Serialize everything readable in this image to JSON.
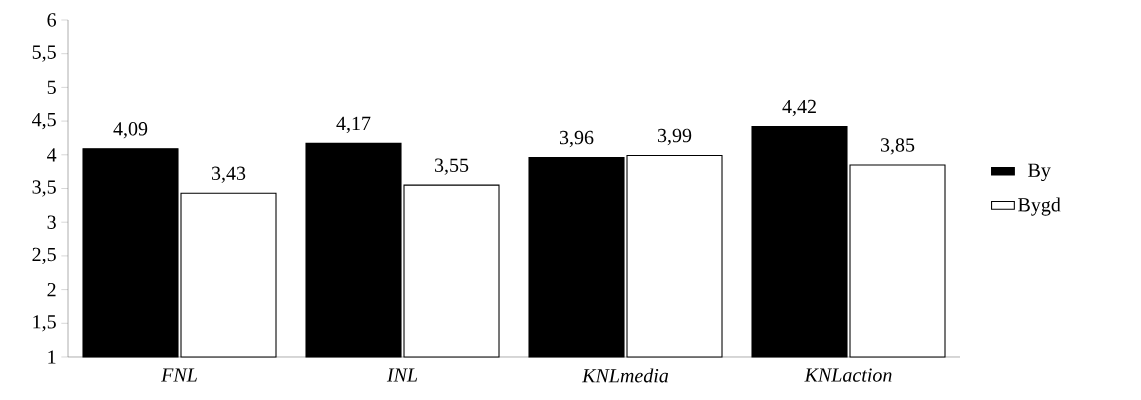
{
  "chart_data": {
    "type": "bar",
    "categories": [
      "FNL",
      "INL",
      "KNLmedia",
      "KNLaction"
    ],
    "series": [
      {
        "name": "By",
        "color": "#000000",
        "values": [
          4.09,
          4.17,
          3.96,
          4.42
        ],
        "value_labels": [
          "4,09",
          "4,17",
          "3,96",
          "4,42"
        ]
      },
      {
        "name": "Bygd",
        "color": "#ffffff",
        "values": [
          3.43,
          3.55,
          3.99,
          3.85
        ],
        "value_labels": [
          "3,43",
          "3,55",
          "3,99",
          "3,85"
        ]
      }
    ],
    "ylim": [
      1,
      6
    ],
    "yticks": [
      1,
      {
        "value": 1.5,
        "label": "1,5"
      },
      2,
      {
        "value": 2.5,
        "label": "2,5"
      },
      3,
      {
        "value": 3.5,
        "label": "3,5"
      },
      4,
      {
        "value": 4.5,
        "label": "4,5"
      },
      5,
      {
        "value": 5.5,
        "label": "5,5"
      },
      6
    ],
    "grid": false,
    "legend": "right"
  }
}
